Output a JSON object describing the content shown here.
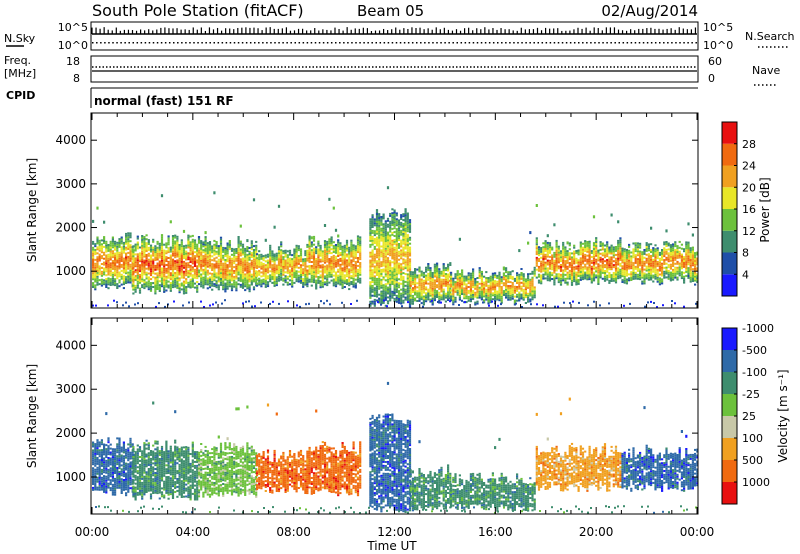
{
  "header": {
    "title": "South Pole Station (fitACF)",
    "beam": "Beam 05",
    "date": "02/Aug/2014"
  },
  "top_panels": {
    "nsky_label": "N.Sky",
    "nsearch_label": "N.Search",
    "freq_label": "Freq.",
    "freq_unit": "[MHz]",
    "nave_label": "Nave",
    "cpid_label": "CPID",
    "cpid_value": "normal (fast) 151 RF",
    "noise_ticks": [
      "10^5",
      "10^0"
    ],
    "freq_ticks": [
      "18",
      "8"
    ],
    "nave_ticks": [
      "60",
      "0"
    ]
  },
  "colors": {
    "power": [
      "#1a1aff",
      "#1f4fa8",
      "#3e8d6e",
      "#6cc13c",
      "#e8e628",
      "#f0a020",
      "#f06a10",
      "#e81010"
    ],
    "velocity": [
      "#e81010",
      "#f06a10",
      "#f0a020",
      "#c8c8a8",
      "#6cc13c",
      "#3e8d6e",
      "#2f6aa8",
      "#1a1aff"
    ]
  },
  "chart_data": [
    {
      "type": "heatmap",
      "name": "power",
      "ylabel": "Slant Range [km]",
      "xlabel": "",
      "ylim": [
        180,
        4600
      ],
      "yticks": [
        1000,
        2000,
        3000,
        4000
      ],
      "colorbar_label": "Power [dB]",
      "colorbar_ticks": [
        "4",
        "8",
        "12",
        "16",
        "20",
        "24",
        "28"
      ],
      "colorbar_range": [
        0,
        32
      ],
      "echo_segments": [
        {
          "t0": 0.0,
          "t1": 1.6,
          "lo": 650,
          "hi": 1750,
          "peak": 26
        },
        {
          "t0": 1.6,
          "t1": 4.2,
          "lo": 550,
          "hi": 1700,
          "peak": 28
        },
        {
          "t0": 4.2,
          "t1": 6.5,
          "lo": 600,
          "hi": 1650,
          "peak": 25
        },
        {
          "t0": 6.5,
          "t1": 8.5,
          "lo": 700,
          "hi": 1500,
          "peak": 24
        },
        {
          "t0": 8.5,
          "t1": 10.6,
          "lo": 650,
          "hi": 1650,
          "peak": 26
        },
        {
          "t0": 11.0,
          "t1": 12.6,
          "lo": 250,
          "hi": 2300,
          "peak": 22
        },
        {
          "t0": 12.6,
          "t1": 14.2,
          "lo": 300,
          "hi": 1100,
          "peak": 24
        },
        {
          "t0": 14.2,
          "t1": 17.6,
          "lo": 300,
          "hi": 950,
          "peak": 24
        },
        {
          "t0": 17.6,
          "t1": 21.0,
          "lo": 750,
          "hi": 1600,
          "peak": 27
        },
        {
          "t0": 21.0,
          "t1": 24.0,
          "lo": 750,
          "hi": 1550,
          "peak": 26
        }
      ]
    },
    {
      "type": "heatmap",
      "name": "velocity",
      "ylabel": "Slant Range [km]",
      "xlabel": "Time UT",
      "ylim": [
        180,
        4600
      ],
      "yticks": [
        1000,
        2000,
        3000,
        4000
      ],
      "xticks": [
        "00:00",
        "04:00",
        "08:00",
        "12:00",
        "16:00",
        "20:00",
        "00:00"
      ],
      "xlim_hours": [
        0,
        24
      ],
      "colorbar_label": "Velocity [m s⁻¹]",
      "colorbar_ticks": [
        "-1000",
        "-500",
        "-100",
        "-25",
        "25",
        "100",
        "500",
        "1000"
      ],
      "echo_segments": [
        {
          "t0": 0.0,
          "t1": 1.6,
          "lo": 650,
          "hi": 1750,
          "v": 6
        },
        {
          "t0": 1.6,
          "t1": 4.2,
          "lo": 550,
          "hi": 1700,
          "v": 5
        },
        {
          "t0": 4.2,
          "t1": 6.5,
          "lo": 600,
          "hi": 1650,
          "v": 4
        },
        {
          "t0": 6.5,
          "t1": 8.5,
          "lo": 700,
          "hi": 1500,
          "v": 1
        },
        {
          "t0": 8.5,
          "t1": 10.6,
          "lo": 650,
          "hi": 1650,
          "v": 1
        },
        {
          "t0": 11.0,
          "t1": 12.6,
          "lo": 250,
          "hi": 2300,
          "v": 6
        },
        {
          "t0": 12.6,
          "t1": 14.2,
          "lo": 300,
          "hi": 1100,
          "v": 5
        },
        {
          "t0": 14.2,
          "t1": 17.6,
          "lo": 300,
          "hi": 950,
          "v": 5
        },
        {
          "t0": 17.6,
          "t1": 21.0,
          "lo": 750,
          "hi": 1600,
          "v": 2
        },
        {
          "t0": 21.0,
          "t1": 24.0,
          "lo": 750,
          "hi": 1550,
          "v": 6
        }
      ]
    }
  ]
}
